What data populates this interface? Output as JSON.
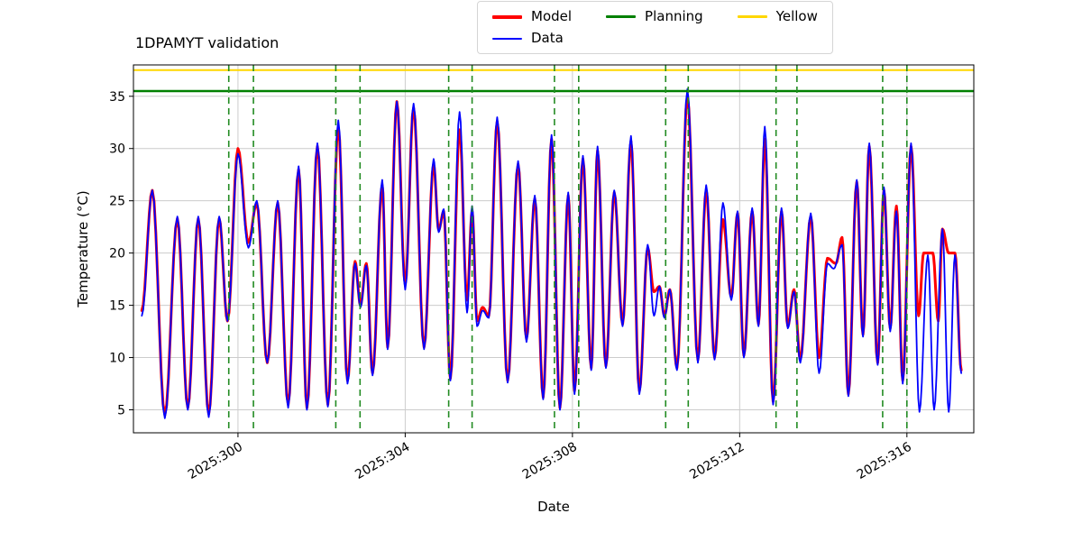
{
  "chart_data": {
    "type": "line",
    "title": "1DPAMYT validation",
    "xlabel": "Date",
    "ylabel": "Temperature (°C)",
    "xlim": [
      297.5,
      317.6
    ],
    "ylim": [
      2.8,
      38.0
    ],
    "grid": true,
    "grid_color": "#cccccc",
    "xticks": {
      "values": [
        300,
        304,
        308,
        312,
        316
      ],
      "labels": [
        "2025:300",
        "2025:304",
        "2025:308",
        "2025:312",
        "2025:316"
      ]
    },
    "yticks": [
      5,
      10,
      15,
      20,
      25,
      30,
      35
    ],
    "hlines": [
      {
        "label": "Planning",
        "y": 35.5,
        "color": "#008000",
        "width": 2.5
      },
      {
        "label": "Yellow",
        "y": 37.5,
        "color": "#ffd700",
        "width": 2
      }
    ],
    "vlines": {
      "color": "#228b22",
      "style": "dashed",
      "width": 1.6,
      "x": [
        299.78,
        300.37,
        302.34,
        302.92,
        305.04,
        305.6,
        307.57,
        308.15,
        310.23,
        310.77,
        312.87,
        313.37,
        315.42,
        316.0
      ]
    },
    "legend_entries": [
      {
        "label": "Model",
        "color": "#ff0000",
        "thickness": 4
      },
      {
        "label": "Planning",
        "color": "#008000",
        "thickness": 3
      },
      {
        "label": "Yellow",
        "color": "#ffd700",
        "thickness": 2.5
      },
      {
        "label": "Data",
        "color": "#0000ff",
        "thickness": 2
      }
    ],
    "series": [
      {
        "name": "Model",
        "color": "#ff0000",
        "width": 3,
        "points": [
          [
            297.7,
            14.5
          ],
          [
            297.95,
            26.0
          ],
          [
            298.25,
            4.5
          ],
          [
            298.55,
            23.3
          ],
          [
            298.8,
            5.2
          ],
          [
            299.05,
            23.3
          ],
          [
            299.3,
            4.6
          ],
          [
            299.55,
            23.3
          ],
          [
            299.75,
            13.5
          ],
          [
            300.0,
            30.0
          ],
          [
            300.25,
            21.0
          ],
          [
            300.45,
            24.8
          ],
          [
            300.7,
            9.5
          ],
          [
            300.95,
            24.8
          ],
          [
            301.2,
            5.5
          ],
          [
            301.45,
            28.0
          ],
          [
            301.65,
            5.2
          ],
          [
            301.9,
            30.2
          ],
          [
            302.15,
            5.5
          ],
          [
            302.4,
            32.0
          ],
          [
            302.62,
            7.8
          ],
          [
            302.8,
            19.2
          ],
          [
            302.93,
            15.0
          ],
          [
            303.07,
            19.0
          ],
          [
            303.22,
            8.5
          ],
          [
            303.45,
            26.5
          ],
          [
            303.58,
            11.0
          ],
          [
            303.8,
            34.5
          ],
          [
            304.0,
            17.0
          ],
          [
            304.2,
            33.9
          ],
          [
            304.45,
            11.0
          ],
          [
            304.68,
            28.5
          ],
          [
            304.8,
            22.2
          ],
          [
            304.92,
            24.0
          ],
          [
            305.08,
            8.0
          ],
          [
            305.3,
            31.8
          ],
          [
            305.48,
            15.5
          ],
          [
            305.6,
            24.0
          ],
          [
            305.72,
            13.5
          ],
          [
            305.85,
            14.8
          ],
          [
            306.0,
            14.0
          ],
          [
            306.2,
            32.6
          ],
          [
            306.45,
            7.8
          ],
          [
            306.7,
            28.5
          ],
          [
            306.9,
            11.8
          ],
          [
            307.1,
            25.2
          ],
          [
            307.3,
            6.2
          ],
          [
            307.5,
            30.9
          ],
          [
            307.7,
            5.2
          ],
          [
            307.9,
            25.5
          ],
          [
            308.05,
            6.8
          ],
          [
            308.25,
            29.0
          ],
          [
            308.45,
            9.0
          ],
          [
            308.6,
            29.8
          ],
          [
            308.8,
            9.2
          ],
          [
            309.0,
            25.8
          ],
          [
            309.2,
            13.2
          ],
          [
            309.4,
            30.7
          ],
          [
            309.6,
            6.8
          ],
          [
            309.8,
            20.5
          ],
          [
            309.95,
            16.3
          ],
          [
            310.08,
            16.8
          ],
          [
            310.2,
            14.0
          ],
          [
            310.33,
            16.5
          ],
          [
            310.5,
            9.0
          ],
          [
            310.75,
            35.0
          ],
          [
            311.0,
            9.8
          ],
          [
            311.2,
            26.0
          ],
          [
            311.4,
            10.0
          ],
          [
            311.6,
            23.2
          ],
          [
            311.8,
            15.8
          ],
          [
            311.95,
            23.8
          ],
          [
            312.1,
            10.2
          ],
          [
            312.3,
            24.0
          ],
          [
            312.45,
            13.2
          ],
          [
            312.6,
            30.9
          ],
          [
            312.8,
            5.8
          ],
          [
            313.0,
            24.0
          ],
          [
            313.15,
            13.0
          ],
          [
            313.3,
            16.5
          ],
          [
            313.45,
            9.8
          ],
          [
            313.7,
            23.5
          ],
          [
            313.9,
            10.0
          ],
          [
            314.1,
            19.5
          ],
          [
            314.3,
            19.0
          ],
          [
            314.45,
            21.5
          ],
          [
            314.6,
            6.5
          ],
          [
            314.8,
            26.8
          ],
          [
            314.95,
            12.2
          ],
          [
            315.1,
            30.2
          ],
          [
            315.3,
            9.5
          ],
          [
            315.45,
            26.0
          ],
          [
            315.6,
            12.8
          ],
          [
            315.75,
            24.5
          ],
          [
            315.9,
            7.8
          ],
          [
            316.1,
            30.2
          ],
          [
            316.28,
            14.0
          ],
          [
            316.4,
            20.0
          ],
          [
            316.62,
            20.0
          ],
          [
            316.75,
            13.5
          ],
          [
            316.85,
            22.3
          ],
          [
            317.0,
            20.0
          ],
          [
            317.15,
            20.0
          ],
          [
            317.3,
            8.8
          ]
        ]
      },
      {
        "name": "Data",
        "color": "#0000ff",
        "width": 1.8,
        "points": [
          [
            297.7,
            14.0
          ],
          [
            297.95,
            26.0
          ],
          [
            298.25,
            4.2
          ],
          [
            298.55,
            23.5
          ],
          [
            298.8,
            5.0
          ],
          [
            299.05,
            23.5
          ],
          [
            299.3,
            4.3
          ],
          [
            299.55,
            23.5
          ],
          [
            299.75,
            13.5
          ],
          [
            300.0,
            29.5
          ],
          [
            300.25,
            20.5
          ],
          [
            300.45,
            25.0
          ],
          [
            300.7,
            9.5
          ],
          [
            300.95,
            25.0
          ],
          [
            301.2,
            5.2
          ],
          [
            301.45,
            28.3
          ],
          [
            301.65,
            5.0
          ],
          [
            301.9,
            30.5
          ],
          [
            302.15,
            5.3
          ],
          [
            302.4,
            32.7
          ],
          [
            302.62,
            7.5
          ],
          [
            302.8,
            19.0
          ],
          [
            302.93,
            14.8
          ],
          [
            303.07,
            18.8
          ],
          [
            303.22,
            8.3
          ],
          [
            303.45,
            27.0
          ],
          [
            303.58,
            10.8
          ],
          [
            303.8,
            34.5
          ],
          [
            304.0,
            16.5
          ],
          [
            304.2,
            34.3
          ],
          [
            304.45,
            10.8
          ],
          [
            304.68,
            29.0
          ],
          [
            304.8,
            22.0
          ],
          [
            304.92,
            24.2
          ],
          [
            305.08,
            7.8
          ],
          [
            305.3,
            33.5
          ],
          [
            305.48,
            14.3
          ],
          [
            305.6,
            24.5
          ],
          [
            305.72,
            13.0
          ],
          [
            305.85,
            14.5
          ],
          [
            306.0,
            13.8
          ],
          [
            306.2,
            33.0
          ],
          [
            306.45,
            7.6
          ],
          [
            306.7,
            28.8
          ],
          [
            306.9,
            11.5
          ],
          [
            307.1,
            25.5
          ],
          [
            307.3,
            6.0
          ],
          [
            307.5,
            31.3
          ],
          [
            307.7,
            5.0
          ],
          [
            307.9,
            25.8
          ],
          [
            308.05,
            6.5
          ],
          [
            308.25,
            29.3
          ],
          [
            308.45,
            8.8
          ],
          [
            308.6,
            30.2
          ],
          [
            308.8,
            9.0
          ],
          [
            309.0,
            26.0
          ],
          [
            309.2,
            13.0
          ],
          [
            309.4,
            31.2
          ],
          [
            309.6,
            6.5
          ],
          [
            309.8,
            20.8
          ],
          [
            309.95,
            14.0
          ],
          [
            310.08,
            16.8
          ],
          [
            310.2,
            13.8
          ],
          [
            310.33,
            16.5
          ],
          [
            310.5,
            8.8
          ],
          [
            310.75,
            35.7
          ],
          [
            311.0,
            9.5
          ],
          [
            311.2,
            26.5
          ],
          [
            311.4,
            9.8
          ],
          [
            311.6,
            24.8
          ],
          [
            311.8,
            15.5
          ],
          [
            311.95,
            24.0
          ],
          [
            312.1,
            10.0
          ],
          [
            312.3,
            24.3
          ],
          [
            312.45,
            13.0
          ],
          [
            312.6,
            32.1
          ],
          [
            312.8,
            5.5
          ],
          [
            313.0,
            24.3
          ],
          [
            313.15,
            12.8
          ],
          [
            313.3,
            16.3
          ],
          [
            313.45,
            9.5
          ],
          [
            313.7,
            23.8
          ],
          [
            313.9,
            8.5
          ],
          [
            314.1,
            19.0
          ],
          [
            314.25,
            18.5
          ],
          [
            314.45,
            20.8
          ],
          [
            314.6,
            6.3
          ],
          [
            314.8,
            27.0
          ],
          [
            314.95,
            12.0
          ],
          [
            315.1,
            30.5
          ],
          [
            315.3,
            9.3
          ],
          [
            315.45,
            26.3
          ],
          [
            315.6,
            12.5
          ],
          [
            315.75,
            24.0
          ],
          [
            315.9,
            7.5
          ],
          [
            316.1,
            30.5
          ],
          [
            316.3,
            4.8
          ],
          [
            316.5,
            19.8
          ],
          [
            316.65,
            5.0
          ],
          [
            316.85,
            22.3
          ],
          [
            317.0,
            4.8
          ],
          [
            317.15,
            19.8
          ],
          [
            317.3,
            8.5
          ]
        ]
      }
    ]
  }
}
